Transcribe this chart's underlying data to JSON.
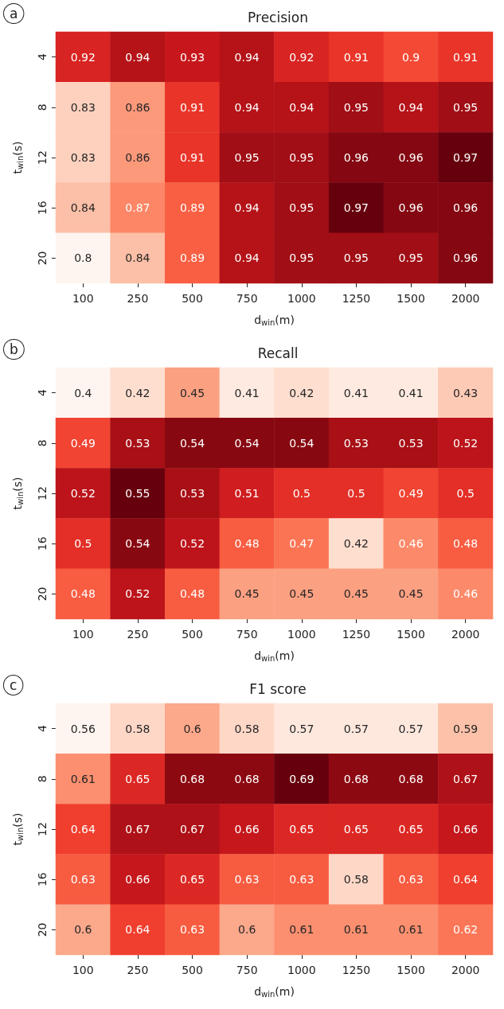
{
  "chart_data": [
    {
      "type": "heatmap",
      "title": "Precision",
      "annotations": [
        "a"
      ],
      "xlabel": "d$_{win}$(m)",
      "ylabel": "t$_{win}$(s)",
      "categories": [
        "100",
        "250",
        "500",
        "750",
        "1000",
        "1250",
        "1500",
        "2000"
      ],
      "y_categories": [
        "4",
        "8",
        "12",
        "16",
        "20"
      ],
      "data_labels": true,
      "cells": [
        [
          0.92,
          0.94,
          0.93,
          0.94,
          0.92,
          0.91,
          0.9,
          0.91
        ],
        [
          0.83,
          0.86,
          0.91,
          0.94,
          0.94,
          0.95,
          0.94,
          0.95
        ],
        [
          0.83,
          0.86,
          0.91,
          0.95,
          0.95,
          0.96,
          0.96,
          0.97
        ],
        [
          0.84,
          0.87,
          0.89,
          0.94,
          0.95,
          0.97,
          0.96,
          0.96
        ],
        [
          0.8,
          0.84,
          0.89,
          0.94,
          0.95,
          0.95,
          0.95,
          0.96
        ]
      ]
    },
    {
      "type": "heatmap",
      "title": "Recall",
      "annotations": [
        "b"
      ],
      "xlabel": "d$_{win}$(m)",
      "ylabel": "t$_{win}$(s)",
      "categories": [
        "100",
        "250",
        "500",
        "750",
        "1000",
        "1250",
        "1500",
        "2000"
      ],
      "y_categories": [
        "4",
        "8",
        "12",
        "16",
        "20"
      ],
      "data_labels": true,
      "cells": [
        [
          0.4,
          0.42,
          0.45,
          0.41,
          0.42,
          0.41,
          0.41,
          0.43
        ],
        [
          0.49,
          0.53,
          0.54,
          0.54,
          0.54,
          0.53,
          0.53,
          0.52
        ],
        [
          0.52,
          0.55,
          0.53,
          0.51,
          0.5,
          0.5,
          0.49,
          0.5
        ],
        [
          0.5,
          0.54,
          0.52,
          0.48,
          0.47,
          0.42,
          0.46,
          0.48
        ],
        [
          0.48,
          0.52,
          0.48,
          0.45,
          0.45,
          0.45,
          0.45,
          0.46
        ]
      ]
    },
    {
      "type": "heatmap",
      "title": "F1 score",
      "annotations": [
        "c"
      ],
      "xlabel": "d$_{win}$(m)",
      "ylabel": "t$_{win}$(s)",
      "categories": [
        "100",
        "250",
        "500",
        "750",
        "1000",
        "1250",
        "1500",
        "2000"
      ],
      "y_categories": [
        "4",
        "8",
        "12",
        "16",
        "20"
      ],
      "data_labels": true,
      "cells": [
        [
          0.56,
          0.58,
          0.6,
          0.58,
          0.57,
          0.57,
          0.57,
          0.59
        ],
        [
          0.61,
          0.65,
          0.68,
          0.68,
          0.69,
          0.68,
          0.68,
          0.67
        ],
        [
          0.64,
          0.67,
          0.67,
          0.66,
          0.65,
          0.65,
          0.65,
          0.66
        ],
        [
          0.63,
          0.66,
          0.65,
          0.63,
          0.63,
          0.58,
          0.63,
          0.64
        ],
        [
          0.6,
          0.64,
          0.63,
          0.6,
          0.61,
          0.61,
          0.61,
          0.62
        ]
      ]
    }
  ]
}
